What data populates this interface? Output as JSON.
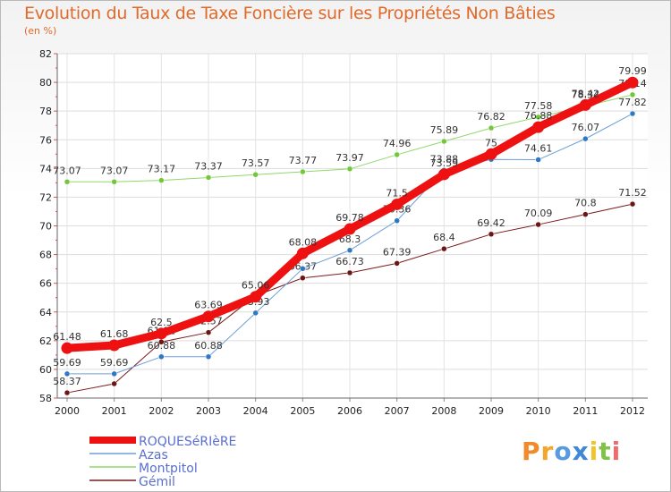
{
  "chart_data": {
    "type": "line",
    "title": "Evolution du Taux de Taxe Foncière sur les Propriétés Non Bâties",
    "ylabel": "(en %)",
    "x": [
      "2000",
      "2001",
      "2002",
      "2003",
      "2004",
      "2005",
      "2006",
      "2007",
      "2008",
      "2009",
      "2010",
      "2011",
      "2012"
    ],
    "ylim": [
      58,
      82
    ],
    "yticks": [
      58,
      60,
      62,
      64,
      66,
      68,
      70,
      72,
      74,
      76,
      78,
      80,
      82
    ],
    "series": [
      {
        "name": "Gémil",
        "color": "#7a1a1a",
        "width": 1,
        "point": "#6b1515",
        "values": [
          58.37,
          59.0,
          61.91,
          62.57,
          65.13,
          66.37,
          66.73,
          67.39,
          68.4,
          69.42,
          70.09,
          70.8,
          71.52
        ],
        "labels": [
          "58.37",
          "",
          "61.91",
          "62.57",
          "",
          "66.37",
          "66.73",
          "67.39",
          "68.4",
          "69.42",
          "70.09",
          "70.8",
          "71.52"
        ]
      },
      {
        "name": "Azas",
        "color": "#6d9fd6",
        "width": 1,
        "point": "#2f78c4",
        "values": [
          59.69,
          59.69,
          60.88,
          60.88,
          63.93,
          67.02,
          68.3,
          70.36,
          73.88,
          74.63,
          74.61,
          76.07,
          77.82
        ],
        "labels": [
          "59.69",
          "59.69",
          "60.88",
          "60.88",
          "63.93",
          "",
          "68.3",
          "70.36",
          "73.88",
          "",
          "74.61",
          "76.07",
          "77.82"
        ]
      },
      {
        "name": "Montpitol",
        "color": "#8fd86a",
        "width": 1,
        "point": "#72c83a",
        "values": [
          73.07,
          73.07,
          73.17,
          73.37,
          73.57,
          73.77,
          73.97,
          74.96,
          75.89,
          76.82,
          77.58,
          78.34,
          79.14
        ],
        "labels": [
          "73.07",
          "73.07",
          "73.17",
          "73.37",
          "73.57",
          "73.77",
          "73.97",
          "74.96",
          "75.89",
          "76.82",
          "77.58",
          "78.34",
          "79.14"
        ]
      },
      {
        "name": "ROQUESéRIèRE",
        "color": "#ee1111",
        "width": 9,
        "point": "#ee1111",
        "values": [
          61.48,
          61.68,
          62.5,
          63.69,
          65.06,
          68.08,
          69.78,
          71.5,
          73.59,
          75.0,
          76.88,
          78.42,
          79.99
        ],
        "labels": [
          "61.48",
          "61.68",
          "62.5",
          "63.69",
          "65.06",
          "68.08",
          "69.78",
          "71.5",
          "73.59",
          "75",
          "76.88",
          "78.42",
          "79.99"
        ]
      }
    ]
  },
  "legend": [
    "ROQUESéRIèRE",
    "Azas",
    "Montpitol",
    "Gémil"
  ],
  "brand": {
    "letters": [
      "P",
      "r",
      "o",
      "x",
      "i",
      "t",
      "i"
    ],
    "colors": [
      "#f08a2a",
      "#f3a52c",
      "#5a9be0",
      "#3f88d8",
      "#f2c32a",
      "#80c348",
      "#f26b6b"
    ]
  }
}
